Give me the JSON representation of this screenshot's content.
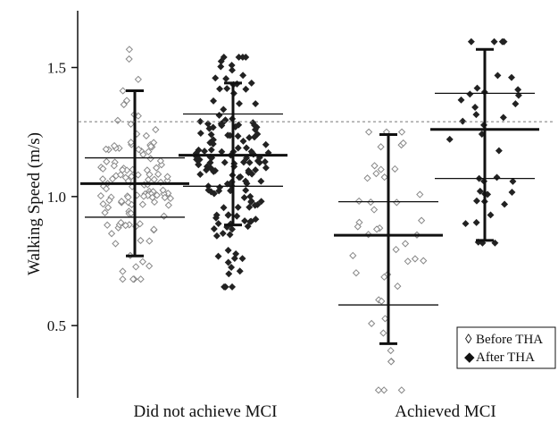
{
  "chart_data": {
    "type": "scatter",
    "title": "",
    "ylabel": "Walking Speed (m/s)",
    "xlabel": "",
    "ylim": [
      0.22,
      1.72
    ],
    "yticks": [
      0.5,
      1.0,
      1.5
    ],
    "ytick_labels": [
      "0.5",
      "1.0",
      "1.5"
    ],
    "categories": [
      "Did not achieve MCI",
      "Achieved MCI"
    ],
    "reference_line": 1.29,
    "grid": false,
    "legend_position": "bottom-right",
    "legend": {
      "before": {
        "symbol": "◊",
        "text": "Before THA"
      },
      "after": {
        "symbol": "◆",
        "text": "After THA"
      }
    },
    "colors": {
      "before_fill": "#ffffff",
      "before_stroke": "#888888",
      "after": "#222222",
      "axis": "#111111",
      "ref_line": "#777777"
    },
    "groups": [
      {
        "category": "Did not achieve MCI",
        "series": "Before THA",
        "n": 120,
        "mean": 1.05,
        "q1": 0.92,
        "q3": 1.15,
        "lower": 0.77,
        "upper": 1.41,
        "min": 0.68,
        "max": 1.57
      },
      {
        "category": "Did not achieve MCI",
        "series": "After THA",
        "n": 150,
        "mean": 1.16,
        "q1": 1.04,
        "q3": 1.32,
        "lower": 0.89,
        "upper": 1.44,
        "min": 0.65,
        "max": 1.54
      },
      {
        "category": "Achieved MCI",
        "series": "Before THA",
        "n": 45,
        "mean": 0.85,
        "q1": 0.58,
        "q3": 0.98,
        "lower": 0.43,
        "upper": 1.24,
        "min": 0.25,
        "max": 1.25
      },
      {
        "category": "Achieved MCI",
        "series": "After THA",
        "n": 38,
        "mean": 1.26,
        "q1": 1.07,
        "q3": 1.4,
        "lower": 0.83,
        "upper": 1.57,
        "min": 0.82,
        "max": 1.6
      }
    ]
  }
}
